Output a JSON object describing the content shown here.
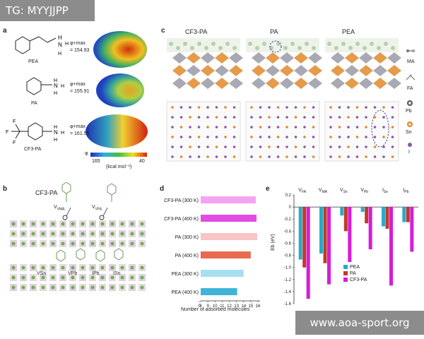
{
  "watermark_top": "TG: MYYJJPP",
  "watermark_bottom": "www.aoa-sport.org",
  "panel_a": {
    "label": "a",
    "molecules": [
      {
        "name": "PEA",
        "value_label": "φ+max",
        "value": "= 154.93"
      },
      {
        "name": "PA",
        "value_label": "φ+max",
        "value": "= 155.91"
      },
      {
        "name": "CF3-PA",
        "value_label": "φ+max",
        "value": "= 161.55"
      }
    ],
    "colorbar": {
      "min": "165",
      "max": "40",
      "unit": "(kcal mol⁻¹)",
      "symbol": "φ"
    }
  },
  "panel_b": {
    "label": "b",
    "molecule": "CF3-PA",
    "top_labels": [
      "VMA",
      "VFA"
    ],
    "bottom_labels": [
      "VSn",
      "VPb",
      "IPb",
      "ISn"
    ]
  },
  "panel_c": {
    "label": "c",
    "columns": [
      "CF3-PA",
      "PA",
      "PEA"
    ],
    "legend": [
      {
        "name": "MA",
        "color": "#777777"
      },
      {
        "name": "FA",
        "color": "#999999"
      },
      {
        "name": "Pb",
        "color": "#555555"
      },
      {
        "name": "Sn",
        "color": "#e08a2a"
      },
      {
        "name": "I",
        "color": "#8a5aa0"
      }
    ]
  },
  "panel_d": {
    "label": "d",
    "chart_data": {
      "type": "bar",
      "orientation": "horizontal",
      "categories": [
        "CF3-PA (300 K)",
        "CF3-PA (400 K)",
        "PA (300 K)",
        "PA (400 K)",
        "PEA (300 K)",
        "PEA (400 K)"
      ],
      "values": [
        15.7,
        15.8,
        15.9,
        15.0,
        14.0,
        13.1
      ],
      "colors": [
        "#f5a3f5",
        "#e24ce2",
        "#f7c5c5",
        "#e86a50",
        "#a6dff0",
        "#3fb4d8"
      ],
      "xlabel": "Number of adsorbed molecules",
      "xticks": [
        "0",
        "8",
        "9",
        "10",
        "11",
        "12",
        "13",
        "14",
        "15",
        "16"
      ],
      "xlim": [
        8,
        16.3
      ]
    }
  },
  "panel_e": {
    "label": "e",
    "chart_data": {
      "type": "bar",
      "categories": [
        "VFA",
        "VMA",
        "VSn",
        "VPb",
        "ISn",
        "IPb"
      ],
      "category_labels": [
        {
          "base": "V",
          "sub": "FA"
        },
        {
          "base": "V",
          "sub": "MA"
        },
        {
          "base": "V",
          "sub": "Sn"
        },
        {
          "base": "V",
          "sub": "Pb"
        },
        {
          "base": "I",
          "sub": "Sn"
        },
        {
          "base": "I",
          "sub": "Pb"
        }
      ],
      "series": [
        {
          "name": "PEA",
          "color": "#2aa9c8",
          "values": [
            -0.87,
            -0.77,
            -0.14,
            -0.08,
            -0.32,
            -0.25
          ]
        },
        {
          "name": "PA",
          "color": "#c0392b",
          "values": [
            -1.0,
            -0.93,
            -0.4,
            -0.27,
            -0.36,
            -0.25
          ]
        },
        {
          "name": "CF3-PA",
          "color": "#d61cd6",
          "values": [
            -1.52,
            -1.28,
            -0.91,
            -0.7,
            -1.3,
            -0.74
          ]
        }
      ],
      "ylabel": "Eb (eV)",
      "ylim": [
        -1.6,
        0.2
      ],
      "yticks": [
        "0.2",
        "0",
        "-0.2",
        "-0.4",
        "-0.6",
        "-0.8",
        "-1.0",
        "-1.2",
        "-1.4",
        "-1.6"
      ]
    }
  }
}
